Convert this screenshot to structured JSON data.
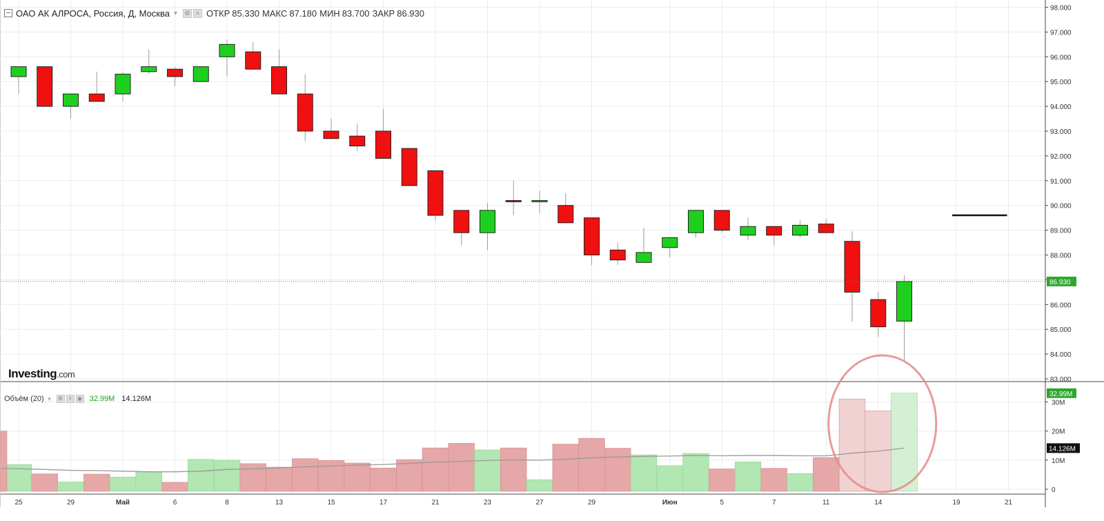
{
  "header": {
    "symbol": "ОАО АК АЛРОСА, Россия, Д, Москва",
    "open_label": "ОТКР",
    "open_value": "85.330",
    "high_label": "МАКС",
    "high_value": "87.180",
    "low_label": "МИН",
    "low_value": "83.700",
    "close_label": "ЗАКР",
    "close_value": "86.930",
    "settings_icon": "gear-icon",
    "close_icon": "close-icon"
  },
  "volume_header": {
    "label": "Объём (20)",
    "volume_value": "32.99M",
    "ma_value": "14.126M"
  },
  "logo": {
    "main": "Investing",
    "suffix": ".com"
  },
  "colors": {
    "up": "#1ed01e",
    "down": "#f01010",
    "vol_up": "#b2e6b2",
    "vol_down": "#e5a7a7",
    "vol_up_hl": "#d3f0d3",
    "vol_down_hl": "#f1d2d2",
    "ma": "#999999",
    "last_price_line": "#2ea62e",
    "annotation": "#e48a8a"
  },
  "chart_data": [
    {
      "type": "candlestick",
      "title": "ОАО АК АЛРОСА, Россия, Д, Москва",
      "ylim": [
        83,
        98
      ],
      "y_ticks": [
        "83.000",
        "84.000",
        "85.000",
        "86.000",
        "87.000",
        "88.000",
        "89.000",
        "90.000",
        "91.000",
        "92.000",
        "93.000",
        "94.000",
        "95.000",
        "96.000",
        "97.000",
        "98.000"
      ],
      "x_ticks": [
        "25",
        "29",
        "Май",
        "6",
        "8",
        "13",
        "15",
        "17",
        "21",
        "23",
        "27",
        "29",
        "Июн",
        "5",
        "7",
        "11",
        "14",
        "19",
        "21"
      ],
      "grid": true,
      "last_price": "86.930",
      "candles": [
        {
          "o": 95.2,
          "h": 95.6,
          "l": 94.5,
          "c": 95.6
        },
        {
          "o": 95.6,
          "h": 95.6,
          "l": 94.0,
          "c": 94.0
        },
        {
          "o": 94.0,
          "h": 94.5,
          "l": 93.5,
          "c": 94.5
        },
        {
          "o": 94.5,
          "h": 95.4,
          "l": 94.2,
          "c": 94.2
        },
        {
          "o": 94.5,
          "h": 95.4,
          "l": 94.2,
          "c": 95.3
        },
        {
          "o": 95.4,
          "h": 96.3,
          "l": 95.3,
          "c": 95.6
        },
        {
          "o": 95.5,
          "h": 95.6,
          "l": 94.8,
          "c": 95.2
        },
        {
          "o": 95.0,
          "h": 95.6,
          "l": 95.0,
          "c": 95.6
        },
        {
          "o": 96.0,
          "h": 96.7,
          "l": 95.2,
          "c": 96.5
        },
        {
          "o": 96.2,
          "h": 96.6,
          "l": 95.5,
          "c": 95.5
        },
        {
          "o": 95.6,
          "h": 96.3,
          "l": 94.5,
          "c": 94.5
        },
        {
          "o": 94.5,
          "h": 95.3,
          "l": 92.6,
          "c": 93.0
        },
        {
          "o": 93.0,
          "h": 93.5,
          "l": 92.7,
          "c": 92.7
        },
        {
          "o": 92.8,
          "h": 93.3,
          "l": 92.2,
          "c": 92.4
        },
        {
          "o": 93.0,
          "h": 93.9,
          "l": 91.9,
          "c": 91.9
        },
        {
          "o": 92.3,
          "h": 92.3,
          "l": 90.8,
          "c": 90.8
        },
        {
          "o": 91.4,
          "h": 91.4,
          "l": 89.4,
          "c": 89.6
        },
        {
          "o": 89.8,
          "h": 89.8,
          "l": 88.4,
          "c": 88.9
        },
        {
          "o": 88.9,
          "h": 90.1,
          "l": 88.2,
          "c": 89.8
        },
        {
          "o": 90.2,
          "h": 91.0,
          "l": 89.6,
          "c": 90.15
        },
        {
          "o": 90.15,
          "h": 90.6,
          "l": 89.7,
          "c": 90.2
        },
        {
          "o": 90.0,
          "h": 90.5,
          "l": 89.3,
          "c": 89.3
        },
        {
          "o": 89.5,
          "h": 89.5,
          "l": 87.6,
          "c": 88.0
        },
        {
          "o": 88.2,
          "h": 88.5,
          "l": 87.6,
          "c": 87.8
        },
        {
          "o": 87.7,
          "h": 89.1,
          "l": 87.7,
          "c": 88.1
        },
        {
          "o": 88.3,
          "h": 88.6,
          "l": 87.9,
          "c": 88.7
        },
        {
          "o": 88.9,
          "h": 89.8,
          "l": 88.7,
          "c": 89.8
        },
        {
          "o": 89.8,
          "h": 89.8,
          "l": 88.9,
          "c": 89.0
        },
        {
          "o": 88.8,
          "h": 89.5,
          "l": 88.6,
          "c": 89.15
        },
        {
          "o": 89.15,
          "h": 89.15,
          "l": 88.4,
          "c": 88.8
        },
        {
          "o": 88.8,
          "h": 89.4,
          "l": 88.7,
          "c": 89.2
        },
        {
          "o": 89.25,
          "h": 89.45,
          "l": 88.9,
          "c": 88.9
        },
        {
          "o": 88.55,
          "h": 88.95,
          "l": 85.3,
          "c": 86.5
        },
        {
          "o": 86.2,
          "h": 86.5,
          "l": 84.7,
          "c": 85.1
        },
        {
          "o": 85.33,
          "h": 87.18,
          "l": 83.7,
          "c": 86.93
        }
      ]
    },
    {
      "type": "bar",
      "title": "Объём (20)",
      "ylim": [
        0,
        35
      ],
      "y_ticks": [
        "0",
        "10M",
        "20M",
        "30M"
      ],
      "values": [
        8.5,
        5.3,
        2.5,
        5.2,
        4.2,
        6.1,
        2.4,
        10.3,
        10.0,
        8.8,
        7.6,
        10.5,
        9.9,
        9.0,
        7.3,
        10.2,
        14.2,
        15.8,
        13.5,
        14.2,
        3.3,
        15.5,
        17.5,
        14.1,
        11.8,
        8.1,
        12.3,
        7.0,
        9.4,
        7.2,
        5.4,
        10.9,
        31.0,
        26.9,
        32.99
      ],
      "ma_20": [
        7.2,
        6.8,
        6.5,
        6.4,
        6.2,
        6.0,
        6.0,
        6.2,
        6.8,
        7.0,
        7.3,
        7.7,
        8.0,
        8.3,
        8.5,
        8.9,
        9.3,
        9.6,
        9.9,
        10.1,
        10.0,
        10.3,
        10.8,
        11.1,
        11.3,
        11.4,
        11.6,
        11.5,
        11.6,
        11.6,
        11.5,
        11.5,
        12.4,
        13.1,
        14.126
      ],
      "volume_label": "32.99M",
      "ma_label": "14.126M"
    }
  ]
}
